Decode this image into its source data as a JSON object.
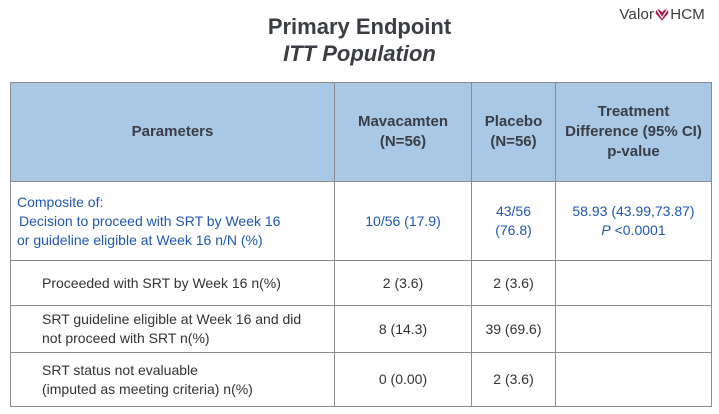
{
  "logo": {
    "text_before": "Valor",
    "text_after": "HCM",
    "heart_color": "#a3224a"
  },
  "header": {
    "title": "Primary Endpoint",
    "subtitle": "ITT Population"
  },
  "table": {
    "header_bg": "#a8c8e6",
    "accent_text": "#1f57b4",
    "columns": [
      {
        "line1": "Parameters"
      },
      {
        "line1": "Mavacamten",
        "line2": "(N=56)"
      },
      {
        "line1": "Placebo",
        "line2": "(N=56)"
      },
      {
        "line1": "Treatment",
        "line2": "Difference (95% CI)",
        "line3": "p-value"
      }
    ],
    "composite": {
      "label_line1": "Composite of:",
      "label_line2": "Decision to proceed with SRT by Week 16",
      "label_line3": "or guideline eligible at Week 16 n/N (%)",
      "mavacamten": "10/56 (17.9)",
      "placebo_line1": "43/56",
      "placebo_line2": "(76.8)",
      "difference": "58.93 (43.99,73.87)",
      "p_prefix": "P",
      "p_value": "<0.0001"
    },
    "rows": [
      {
        "label_line1": "Proceeded with SRT by Week 16  n(%)",
        "mavacamten": "2 (3.6)",
        "placebo": "2 (3.6)"
      },
      {
        "label_line1": "SRT guideline eligible at Week 16 and did",
        "label_line2": "not proceed with SRT n(%)",
        "mavacamten": "8 (14.3)",
        "placebo": "39 (69.6)"
      },
      {
        "label_line1": "SRT status not evaluable",
        "label_line2": "(imputed as meeting criteria) n(%)",
        "mavacamten": "0 (0.00)",
        "placebo": "2 (3.6)"
      }
    ]
  }
}
